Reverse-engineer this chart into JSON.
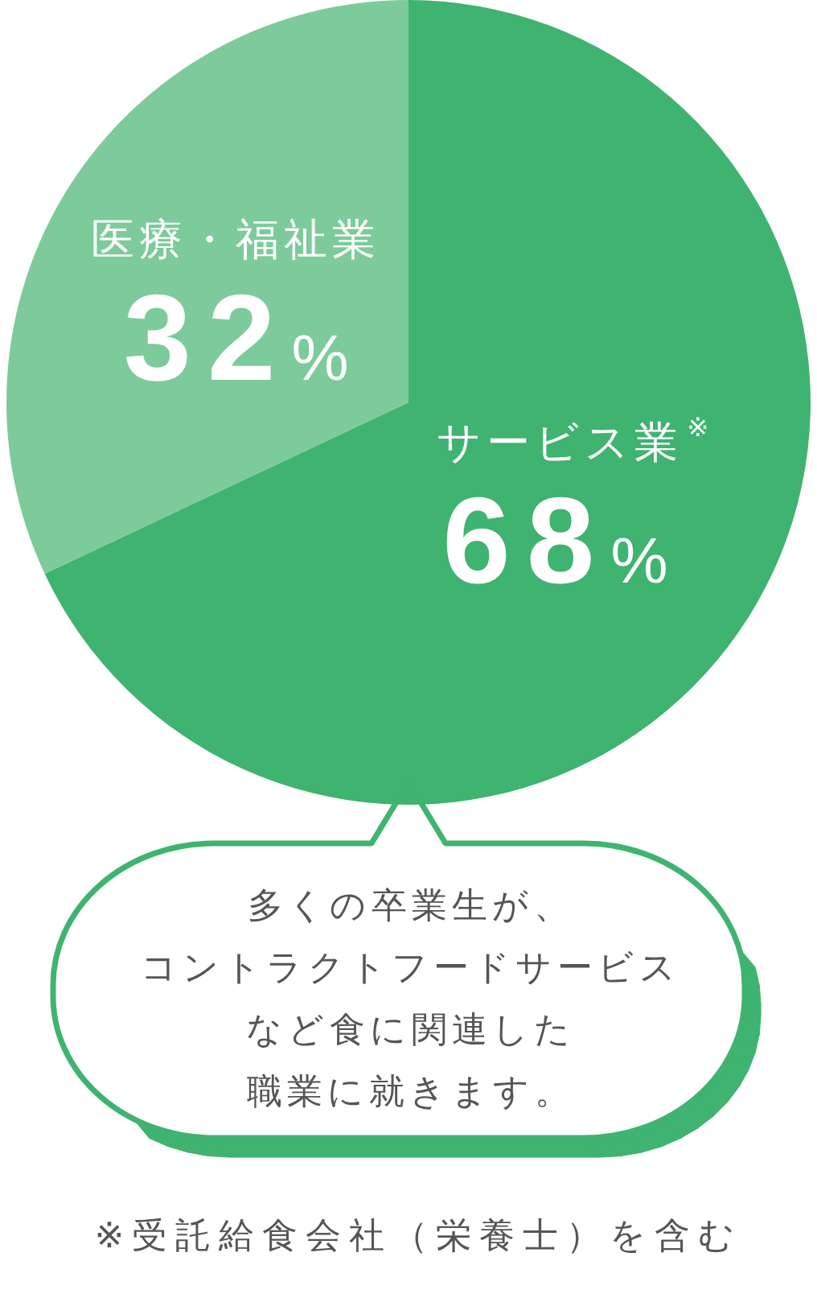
{
  "chart_data": {
    "type": "pie",
    "categories": [
      "サービス業$^{※}$",
      "医療・福祉業"
    ],
    "values": [
      68,
      32
    ],
    "colors": [
      "#3fb370",
      "#7dcb9b"
    ],
    "value_labels": [
      "68%",
      "32%"
    ],
    "annotations": [
      "多くの卒業生が、",
      "コントラクトフードサービス",
      "など食に関連した",
      "職業に就きます。",
      "※受託給食会社（栄養士）を含む"
    ]
  }
}
